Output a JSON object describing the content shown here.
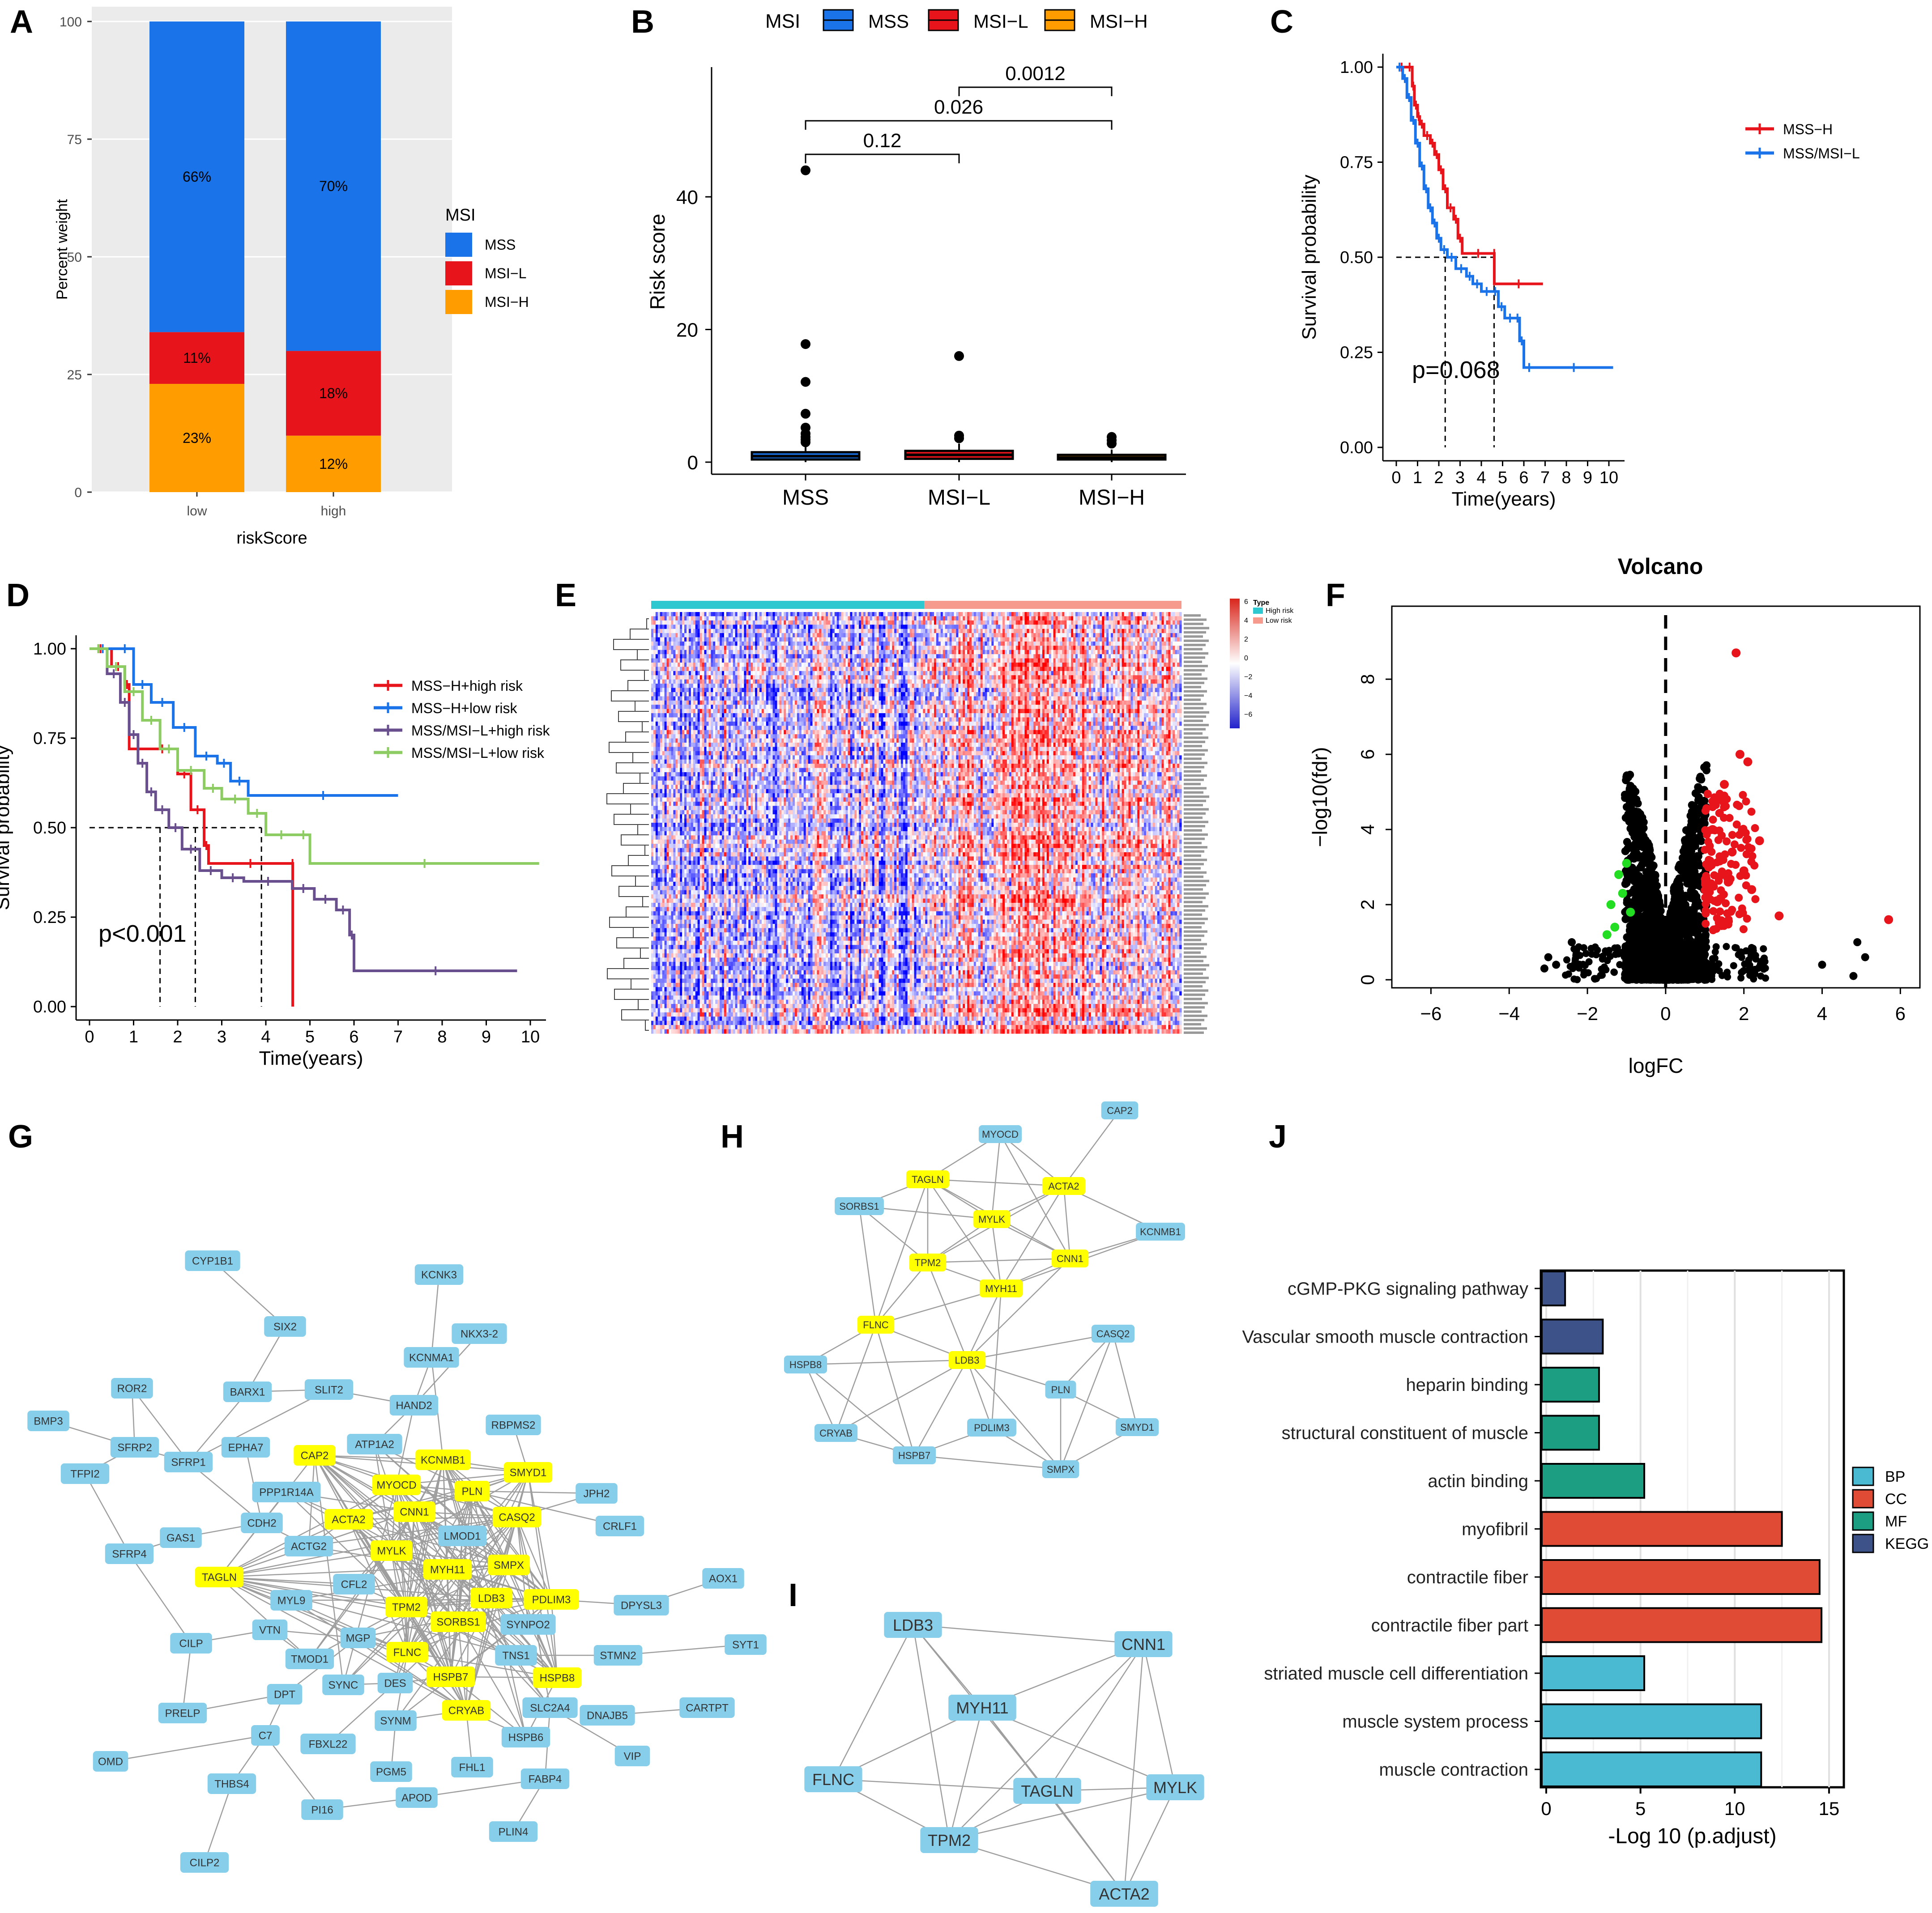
{
  "colors": {
    "mss": "#1a73e8",
    "msil": "#e8141b",
    "msih": "#ff9c00",
    "mssh": "#e8141b",
    "mssmsil": "#1a73e8",
    "purple": "#6a4f8f",
    "green": "#8ccc63",
    "node_blue": "#87ceeb",
    "node_yellow": "#ffff00",
    "bp": "#4ab9d2",
    "cc": "#e04b35",
    "mf": "#1c9e82",
    "kegg": "#3c5289",
    "heat_high": "#d9261c",
    "heat_low": "#2222cc",
    "heat_top_high": "#2ec8d0",
    "heat_top_low": "#f59a8c"
  },
  "panels": {
    "A": "A",
    "B": "B",
    "C": "C",
    "D": "D",
    "E": "E",
    "F": "F",
    "G": "G",
    "H": "H",
    "I": "I",
    "J": "J"
  },
  "chart_data": [
    {
      "id": "A",
      "type": "bar",
      "stacked": true,
      "title": "",
      "xlabel": "riskScore",
      "ylabel": "Percent weight",
      "categories": [
        "low",
        "high"
      ],
      "yticks": [
        "0",
        "25",
        "50",
        "75",
        "100"
      ],
      "ylim": [
        0,
        100
      ],
      "legend_title": "MSI",
      "series": [
        {
          "name": "MSI−H",
          "values": [
            23,
            12
          ],
          "labels": [
            "23%",
            "12%"
          ]
        },
        {
          "name": "MSI−L",
          "values": [
            11,
            18
          ],
          "labels": [
            "11%",
            "18%"
          ]
        },
        {
          "name": "MSS",
          "values": [
            66,
            70
          ],
          "labels": [
            "66%",
            "70%"
          ]
        }
      ],
      "legend": [
        "MSS",
        "MSI−L",
        "MSI−H"
      ]
    },
    {
      "id": "B",
      "type": "box",
      "ylabel": "Risk score",
      "categories": [
        "MSS",
        "MSI−L",
        "MSI−H"
      ],
      "legend_title": "MSI",
      "legend": [
        "MSS",
        "MSI−L",
        "MSI−H"
      ],
      "yticks": [
        "0",
        "20",
        "40"
      ],
      "ylim": [
        0,
        60
      ],
      "boxes": [
        {
          "q1": 0.4,
          "median": 0.9,
          "q3": 1.5,
          "low": 0,
          "high": 2.6,
          "outliers": [
            44,
            17.8,
            12.1,
            7.3,
            5.2,
            4.3,
            3.8,
            3.4,
            3.0
          ]
        },
        {
          "q1": 0.5,
          "median": 1.1,
          "q3": 1.7,
          "low": 0,
          "high": 2.8,
          "outliers": [
            16.0,
            4.0,
            3.6
          ]
        },
        {
          "q1": 0.4,
          "median": 0.7,
          "q3": 1.1,
          "low": 0,
          "high": 1.9,
          "outliers": [
            3.8,
            3.3,
            2.8
          ]
        }
      ],
      "comparisons": [
        {
          "a": 0,
          "b": 1,
          "p": "0.12"
        },
        {
          "a": 0,
          "b": 2,
          "p": "0.026"
        },
        {
          "a": 1,
          "b": 2,
          "p": "0.0012"
        }
      ]
    },
    {
      "id": "C",
      "type": "line",
      "subtype": "kaplan-meier",
      "xlabel": "Time(years)",
      "ylabel": "Survival probability",
      "xticks": [
        "0",
        "1",
        "2",
        "3",
        "4",
        "5",
        "6",
        "7",
        "8",
        "9",
        "10"
      ],
      "yticks": [
        "0.00",
        "0.25",
        "0.50",
        "0.75",
        "1.00"
      ],
      "xlim": [
        0,
        10
      ],
      "ylim": [
        0,
        1
      ],
      "pvalue": "p=0.068",
      "median_lines": [
        2.3,
        4.6
      ],
      "series": [
        {
          "name": "MSS−H",
          "x": [
            0,
            0.5,
            0.75,
            0.85,
            1.0,
            1.1,
            1.3,
            1.6,
            1.8,
            2.0,
            2.2,
            2.4,
            2.7,
            2.9,
            3.1,
            4.6,
            4.61,
            6.9
          ],
          "y": [
            1,
            1,
            0.95,
            0.9,
            0.87,
            0.85,
            0.82,
            0.8,
            0.77,
            0.73,
            0.68,
            0.63,
            0.6,
            0.55,
            0.51,
            0.51,
            0.43,
            0.43
          ]
        },
        {
          "name": "MSS/MSI−L",
          "x": [
            0,
            0.3,
            0.5,
            0.7,
            0.9,
            1.1,
            1.3,
            1.5,
            1.7,
            1.9,
            2.1,
            2.4,
            2.8,
            3.3,
            3.6,
            4.0,
            4.5,
            4.8,
            5.1,
            5.6,
            5.8,
            6.0,
            6.5,
            10.2
          ],
          "y": [
            1,
            0.97,
            0.92,
            0.86,
            0.8,
            0.74,
            0.68,
            0.63,
            0.59,
            0.55,
            0.52,
            0.5,
            0.47,
            0.45,
            0.43,
            0.41,
            0.41,
            0.37,
            0.34,
            0.34,
            0.28,
            0.21,
            0.21,
            0.21
          ]
        }
      ]
    },
    {
      "id": "D",
      "type": "line",
      "subtype": "kaplan-meier",
      "xlabel": "Time(years)",
      "ylabel": "Survival probability",
      "xticks": [
        "0",
        "1",
        "2",
        "3",
        "4",
        "5",
        "6",
        "7",
        "8",
        "9",
        "10"
      ],
      "yticks": [
        "0.00",
        "0.25",
        "0.50",
        "0.75",
        "1.00"
      ],
      "xlim": [
        0,
        10
      ],
      "ylim": [
        0,
        1
      ],
      "pvalue": "p<0.001",
      "median_lines": [
        1.6,
        2.4,
        3.9
      ],
      "series": [
        {
          "name": "MSS−H+high risk",
          "x": [
            0,
            0.5,
            0.8,
            0.9,
            1.3,
            2.0,
            2.3,
            2.6,
            2.7,
            4.6,
            4.61
          ],
          "y": [
            1,
            0.95,
            0.9,
            0.72,
            0.72,
            0.65,
            0.55,
            0.45,
            0.4,
            0.4,
            0
          ]
        },
        {
          "name": "MSS−H+low risk",
          "x": [
            0,
            0.6,
            1.0,
            1.4,
            1.9,
            2.4,
            2.9,
            3.2,
            3.6,
            7.0
          ],
          "y": [
            1,
            1,
            0.9,
            0.85,
            0.78,
            0.7,
            0.68,
            0.63,
            0.59,
            0.59
          ]
        },
        {
          "name": "MSS/MSI−L+high risk",
          "x": [
            0,
            0.4,
            0.7,
            0.9,
            1.1,
            1.3,
            1.5,
            1.8,
            2.1,
            2.5,
            3.0,
            3.5,
            4.6,
            5.1,
            5.6,
            5.9,
            6.0,
            9.7
          ],
          "y": [
            1,
            0.93,
            0.85,
            0.76,
            0.68,
            0.6,
            0.55,
            0.5,
            0.44,
            0.38,
            0.36,
            0.35,
            0.33,
            0.3,
            0.27,
            0.2,
            0.1,
            0.1
          ]
        },
        {
          "name": "MSS/MSI−L+low risk",
          "x": [
            0,
            0.4,
            0.8,
            1.2,
            1.6,
            2.0,
            2.6,
            3.0,
            3.6,
            4.0,
            4.7,
            5.0,
            10.2
          ],
          "y": [
            1,
            0.95,
            0.88,
            0.8,
            0.72,
            0.66,
            0.61,
            0.58,
            0.54,
            0.48,
            0.48,
            0.4,
            0.4
          ]
        }
      ]
    },
    {
      "id": "E",
      "type": "heatmap",
      "legend_title": "Type",
      "legend": [
        "High risk",
        "Low risk"
      ],
      "scale": [
        "6",
        "4",
        "2",
        "0",
        "−2",
        "−4",
        "−6"
      ],
      "rows": 100,
      "cols": 240
    },
    {
      "id": "F",
      "type": "scatter",
      "title": "Volcano",
      "xlabel": "logFC",
      "ylabel": "−log10(fdr)",
      "xticks": [
        "−6",
        "−4",
        "−2",
        "0",
        "2",
        "4",
        "6"
      ],
      "yticks": [
        "0",
        "2",
        "4",
        "6",
        "8"
      ],
      "xlim": [
        -7,
        6.5
      ],
      "ylim": [
        0,
        9.8
      ],
      "up_points": [
        [
          1.8,
          8.7
        ],
        [
          1.9,
          6.0
        ],
        [
          2.1,
          5.8
        ],
        [
          2.4,
          3.7
        ],
        [
          2.9,
          1.7
        ],
        [
          5.7,
          1.6
        ],
        [
          1.5,
          5.2
        ],
        [
          1.2,
          4.0
        ],
        [
          1.1,
          3.0
        ],
        [
          1.6,
          2.6
        ],
        [
          2.0,
          2.9
        ],
        [
          1.3,
          2.1
        ],
        [
          1.7,
          3.4
        ],
        [
          2.2,
          2.4
        ]
      ],
      "down_points": [
        [
          -1.2,
          2.8
        ],
        [
          -1.4,
          2.0
        ],
        [
          -1.3,
          1.4
        ],
        [
          -0.9,
          1.8
        ],
        [
          -1.1,
          2.3
        ],
        [
          -1.5,
          1.2
        ],
        [
          -1.0,
          3.1
        ]
      ],
      "outliers": [
        [
          4.9,
          1.0
        ],
        [
          5.1,
          0.6
        ],
        [
          4.8,
          0.1
        ],
        [
          4.0,
          0.4
        ],
        [
          -2.8,
          0.4
        ],
        [
          -3.0,
          0.6
        ],
        [
          -2.4,
          1.0
        ],
        [
          -3.1,
          0.3
        ]
      ]
    },
    {
      "id": "J",
      "type": "bar",
      "orientation": "horizontal",
      "xlabel": "-Log 10 (p.adjust)",
      "xticks": [
        "0",
        "5",
        "10",
        "15"
      ],
      "xlim": [
        0,
        15.5
      ],
      "categories": [
        "cGMP-PKG signaling pathway",
        "Vascular smooth muscle contraction",
        "heparin binding",
        "structural constituent of muscle",
        "actin binding",
        "myofibril",
        "contractile fiber",
        "contractile fiber part",
        "striated muscle cell differentiation",
        "muscle system process",
        "muscle contraction"
      ],
      "values": [
        1.0,
        3.0,
        2.8,
        2.8,
        5.2,
        12.5,
        14.5,
        14.6,
        5.2,
        11.4,
        11.4
      ],
      "groups": [
        "KEGG",
        "KEGG",
        "MF",
        "MF",
        "MF",
        "CC",
        "CC",
        "CC",
        "BP",
        "BP",
        "BP"
      ],
      "legend": [
        "BP",
        "CC",
        "MF",
        "KEGG"
      ]
    }
  ],
  "networks": {
    "G": {
      "nodes": [
        [
          "CYP1B1",
          0
        ],
        [
          "SIX2",
          0
        ],
        [
          "KCNK3",
          0
        ],
        [
          "NKX3-2",
          0
        ],
        [
          "KCNMA1",
          0
        ],
        [
          "ROR2",
          0
        ],
        [
          "BARX1",
          0
        ],
        [
          "SLIT2",
          0
        ],
        [
          "HAND2",
          0
        ],
        [
          "BMP3",
          0
        ],
        [
          "RBPMS2",
          0
        ],
        [
          "SFRP2",
          0
        ],
        [
          "SFRP1",
          0
        ],
        [
          "EPHA7",
          0
        ],
        [
          "ATP1A2",
          0
        ],
        [
          "TFPI2",
          0
        ],
        [
          "CAP2",
          1
        ],
        [
          "KCNMB1",
          1
        ],
        [
          "SMYD1",
          1
        ],
        [
          "MYOCD",
          1
        ],
        [
          "PLN",
          1
        ],
        [
          "PPP1R14A",
          0
        ],
        [
          "JPH2",
          0
        ],
        [
          "CDH2",
          0
        ],
        [
          "CNN1",
          1
        ],
        [
          "CASQ2",
          1
        ],
        [
          "ACTA2",
          1
        ],
        [
          "GAS1",
          0
        ],
        [
          "ACTG2",
          0
        ],
        [
          "LMOD1",
          0
        ],
        [
          "CRLF1",
          0
        ],
        [
          "SFRP4",
          0
        ],
        [
          "MYLK",
          1
        ],
        [
          "MYH11",
          1
        ],
        [
          "SMPX",
          1
        ],
        [
          "TAGLN",
          1
        ],
        [
          "CFL2",
          0
        ],
        [
          "AOX1",
          0
        ],
        [
          "LDB3",
          1
        ],
        [
          "PDLIM3",
          1
        ],
        [
          "MYL9",
          0
        ],
        [
          "TPM2",
          1
        ],
        [
          "SORBS1",
          1
        ],
        [
          "DPYSL3",
          0
        ],
        [
          "SYNPO2",
          0
        ],
        [
          "CILP",
          0
        ],
        [
          "VTN",
          0
        ],
        [
          "MGP",
          0
        ],
        [
          "SYT1",
          0
        ],
        [
          "FLNC",
          1
        ],
        [
          "TNS1",
          0
        ],
        [
          "STMN2",
          0
        ],
        [
          "TMOD1",
          0
        ],
        [
          "HSPB8",
          1
        ],
        [
          "SYNC",
          0
        ],
        [
          "DES",
          0
        ],
        [
          "HSPB7",
          1
        ],
        [
          "PRELP",
          0
        ],
        [
          "DPT",
          0
        ],
        [
          "SLC2A4",
          0
        ],
        [
          "CARTPT",
          0
        ],
        [
          "CRYAB",
          1
        ],
        [
          "DNAJB5",
          0
        ],
        [
          "SYNM",
          0
        ],
        [
          "C7",
          0
        ],
        [
          "FBXL22",
          0
        ],
        [
          "HSPB6",
          0
        ],
        [
          "VIP",
          0
        ],
        [
          "OMD",
          0
        ],
        [
          "FHL1",
          0
        ],
        [
          "PGM5",
          0
        ],
        [
          "THBS4",
          0
        ],
        [
          "FABP4",
          0
        ],
        [
          "APOD",
          0
        ],
        [
          "PI16",
          0
        ],
        [
          "PLIN4",
          0
        ],
        [
          "CILP2",
          0
        ]
      ]
    },
    "H": {
      "nodes": [
        [
          "CAP2",
          0
        ],
        [
          "MYOCD",
          0
        ],
        [
          "TAGLN",
          1
        ],
        [
          "ACTA2",
          1
        ],
        [
          "SORBS1",
          0
        ],
        [
          "MYLK",
          1
        ],
        [
          "KCNMB1",
          0
        ],
        [
          "TPM2",
          1
        ],
        [
          "CNN1",
          1
        ],
        [
          "MYH11",
          1
        ],
        [
          "FLNC",
          1
        ],
        [
          "CASQ2",
          0
        ],
        [
          "HSPB8",
          0
        ],
        [
          "LDB3",
          1
        ],
        [
          "PLN",
          0
        ],
        [
          "CRYAB",
          0
        ],
        [
          "PDLIM3",
          0
        ],
        [
          "SMYD1",
          0
        ],
        [
          "HSPB7",
          0
        ],
        [
          "SMPX",
          0
        ]
      ]
    },
    "I": {
      "nodes": [
        [
          "LDB3",
          0
        ],
        [
          "CNN1",
          0
        ],
        [
          "MYH11",
          0
        ],
        [
          "FLNC",
          0
        ],
        [
          "TAGLN",
          0
        ],
        [
          "MYLK",
          0
        ],
        [
          "TPM2",
          0
        ],
        [
          "ACTA2",
          0
        ]
      ]
    }
  }
}
